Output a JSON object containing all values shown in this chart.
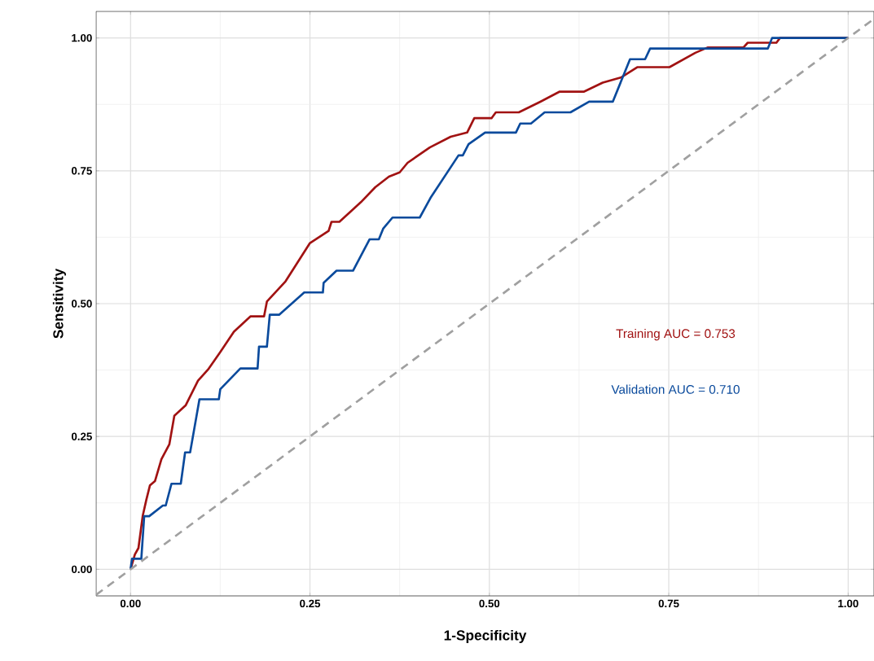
{
  "chart_data": {
    "type": "line",
    "xlabel": "1-Specificity",
    "ylabel": "Sensitivity",
    "annotations": [
      "Training AUC = 0.753",
      "Validation AUC = 0.710"
    ],
    "xlim": [
      -0.048,
      1.036
    ],
    "ylim": [
      -0.05,
      1.05
    ],
    "xticks": [
      {
        "value": 0,
        "label": "0.00"
      },
      {
        "value": 0.25,
        "label": "0.25"
      },
      {
        "value": 0.5,
        "label": "0.50"
      },
      {
        "value": 0.75,
        "label": "0.75"
      },
      {
        "value": 1,
        "label": "1.00"
      }
    ],
    "yticks": [
      {
        "value": 0,
        "label": "0.00"
      },
      {
        "value": 0.25,
        "label": "0.25"
      },
      {
        "value": 0.5,
        "label": "0.50"
      },
      {
        "value": 0.75,
        "label": "0.75"
      },
      {
        "value": 1,
        "label": "1.00"
      }
    ],
    "grid": true,
    "legend": false,
    "marker": "none",
    "series": [
      {
        "color": "#a11212",
        "line_style": "solid",
        "x": [
          0,
          0.006,
          0.011,
          0.017,
          0.022,
          0.027,
          0.034,
          0.043,
          0.054,
          0.061,
          0.077,
          0.094,
          0.108,
          0.125,
          0.144,
          0.167,
          0.186,
          0.19,
          0.216,
          0.25,
          0.276,
          0.28,
          0.291,
          0.321,
          0.341,
          0.36,
          0.375,
          0.386,
          0.417,
          0.446,
          0.469,
          0.479,
          0.503,
          0.509,
          0.541,
          0.571,
          0.598,
          0.632,
          0.658,
          0.684,
          0.706,
          0.751,
          0.787,
          0.804,
          0.854,
          0.86,
          0.9,
          0.905,
          1
        ],
        "values": [
          0,
          0.028,
          0.04,
          0.101,
          0.131,
          0.158,
          0.166,
          0.207,
          0.235,
          0.289,
          0.309,
          0.355,
          0.376,
          0.409,
          0.447,
          0.476,
          0.476,
          0.504,
          0.542,
          0.614,
          0.637,
          0.654,
          0.654,
          0.691,
          0.719,
          0.739,
          0.747,
          0.765,
          0.794,
          0.814,
          0.822,
          0.849,
          0.849,
          0.86,
          0.86,
          0.88,
          0.899,
          0.899,
          0.916,
          0.926,
          0.945,
          0.945,
          0.972,
          0.982,
          0.982,
          0.991,
          0.991,
          1,
          1
        ]
      },
      {
        "color": "#0a4a9c",
        "line_style": "solid",
        "x": [
          0,
          0.002,
          0.015,
          0.019,
          0.026,
          0.045,
          0.049,
          0.057,
          0.07,
          0.076,
          0.083,
          0.096,
          0.123,
          0.125,
          0.153,
          0.177,
          0.179,
          0.19,
          0.194,
          0.207,
          0.242,
          0.268,
          0.269,
          0.287,
          0.31,
          0.333,
          0.346,
          0.352,
          0.365,
          0.403,
          0.418,
          0.457,
          0.463,
          0.471,
          0.494,
          0.537,
          0.543,
          0.558,
          0.577,
          0.613,
          0.639,
          0.672,
          0.696,
          0.717,
          0.724,
          0.888,
          0.894,
          1
        ],
        "values": [
          0,
          0.02,
          0.02,
          0.1,
          0.1,
          0.12,
          0.12,
          0.161,
          0.161,
          0.22,
          0.22,
          0.32,
          0.32,
          0.339,
          0.378,
          0.378,
          0.419,
          0.419,
          0.479,
          0.479,
          0.521,
          0.521,
          0.539,
          0.562,
          0.562,
          0.621,
          0.621,
          0.641,
          0.662,
          0.662,
          0.699,
          0.779,
          0.779,
          0.8,
          0.822,
          0.822,
          0.839,
          0.839,
          0.86,
          0.86,
          0.88,
          0.88,
          0.96,
          0.96,
          0.98,
          0.98,
          1,
          1
        ]
      },
      {
        "color": "#a0a0a0",
        "line_style": "dashed",
        "x": [
          -0.048,
          1.036
        ],
        "values": [
          -0.048,
          1.036
        ]
      }
    ]
  }
}
